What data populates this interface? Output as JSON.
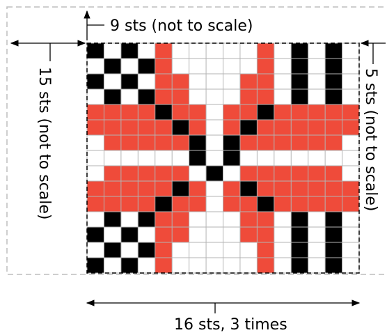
{
  "labels": {
    "top": "9 sts (not to scale)",
    "left": "15 sts (not to scale)",
    "right": "5 sts (not to scale)",
    "bottom": "16 sts, 3 times"
  },
  "colors": {
    "red": "#ef4b3a",
    "black": "#000000",
    "white": "#ffffff",
    "gridline": "#b3b3b3",
    "outer_dash": "#bdbdbd",
    "inner_dash": "#000000",
    "arrow": "#000000"
  },
  "chart_grid": {
    "columns": 16,
    "rows": 15,
    "key": {
      "R": "red",
      "B": "black",
      ".": "white"
    },
    "rows_data": [
      "B.B.R.....R.B.B.",
      ".B.BR.....R.B.B.",
      "B.B.RR...RR.B.B.",
      ".B.BRR...RR.B.B.",
      "RRRRBRR.RRBRRRRR",
      "RRRRRBR.RBRRRRRR",
      ".RRRRRB.BRRRRRR.",
      "......B.B.......",
      ".RRRRR.B.RRRRRR.",
      "RRRRRBR.RBRRRRRR",
      "RRRRBRR.RRBRRRRR",
      ".B.BRR...RR.B.B.",
      "B.B.RR...RR.B.B.",
      ".B.BR.....R.B.B.",
      "B.B.R.....R.B.B."
    ]
  }
}
